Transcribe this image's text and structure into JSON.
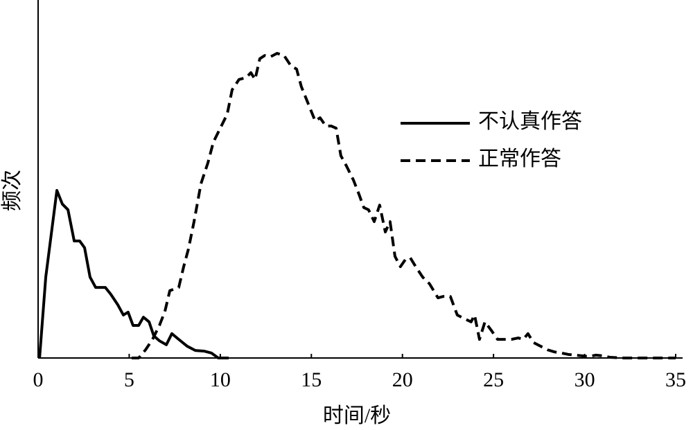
{
  "chart_data": {
    "type": "line",
    "xlabel": "时间/秒",
    "ylabel": "频次",
    "xlim": [
      0,
      35
    ],
    "xticks": [
      0,
      5,
      10,
      15,
      20,
      25,
      30,
      35
    ],
    "ylim": [
      0,
      100
    ],
    "legend": "upper right",
    "series": [
      {
        "name": "不认真作答",
        "color": "#000000",
        "dash": "solid",
        "x": [
          0.08,
          0.42,
          1.03,
          1.33,
          1.64,
          1.98,
          2.28,
          2.55,
          2.85,
          3.16,
          3.69,
          3.99,
          4.37,
          4.68,
          4.94,
          5.21,
          5.52,
          5.78,
          6.09,
          6.35,
          6.66,
          7.04,
          7.34,
          7.72,
          8.18,
          8.63,
          9.13,
          9.51,
          9.89,
          10.46
        ],
        "values": [
          0,
          22.6,
          46.8,
          43.0,
          41.4,
          32.7,
          32.7,
          30.8,
          22.6,
          19.7,
          19.7,
          17.8,
          14.9,
          12.0,
          12.8,
          9.1,
          9.1,
          11.4,
          10.1,
          6.2,
          4.8,
          3.7,
          6.8,
          5.2,
          3.3,
          2.1,
          1.9,
          1.4,
          0,
          0
        ]
      },
      {
        "name": "正常作答",
        "color": "#000000",
        "dash": "dashed",
        "x": [
          5.13,
          5.52,
          5.9,
          6.28,
          6.66,
          6.96,
          7.23,
          7.72,
          7.99,
          8.25,
          8.56,
          8.94,
          9.32,
          9.62,
          10.0,
          10.38,
          10.65,
          11.03,
          11.41,
          11.68,
          11.91,
          12.17,
          12.44,
          12.74,
          13.12,
          13.5,
          13.88,
          14.19,
          14.45,
          14.83,
          15.21,
          15.48,
          15.79,
          16.09,
          16.36,
          16.62,
          16.93,
          17.31,
          17.61,
          17.88,
          18.14,
          18.45,
          18.75,
          19.06,
          19.32,
          19.59,
          19.89,
          20.16,
          20.43,
          20.73,
          21.11,
          21.49,
          21.95,
          22.25,
          22.63,
          23.01,
          23.39,
          23.77,
          23.96,
          24.23,
          24.53,
          24.91,
          25.22,
          25.6,
          25.98,
          26.36,
          26.63,
          26.89,
          27.2,
          27.58,
          27.96,
          28.34,
          28.72,
          29.1,
          29.48,
          29.86,
          30.24,
          30.62,
          31.0,
          31.38,
          32.14,
          35
        ],
        "values": [
          0,
          0,
          2.3,
          5.2,
          9.1,
          13.0,
          18.8,
          19.7,
          25.5,
          30.4,
          38.1,
          48.7,
          54.5,
          60.3,
          64.2,
          68.1,
          74.9,
          77.8,
          78.3,
          79.7,
          77.8,
          83.6,
          84.5,
          84.1,
          85.1,
          84.5,
          81.6,
          80.7,
          75.8,
          71.0,
          66.2,
          67.1,
          64.8,
          64.8,
          64.2,
          56.5,
          53.6,
          49.7,
          45.8,
          42.0,
          41.4,
          38.1,
          42.7,
          35.2,
          38.1,
          28.4,
          25.5,
          27.5,
          28.0,
          25.5,
          22.6,
          20.7,
          16.8,
          17.2,
          17.2,
          12.0,
          11.0,
          10.1,
          12.0,
          5.2,
          10.1,
          7.5,
          5.2,
          5.2,
          5.2,
          5.6,
          5.2,
          6.8,
          4.3,
          3.3,
          2.3,
          1.7,
          1.4,
          1.0,
          0.8,
          0.6,
          0.4,
          0.8,
          0.6,
          0.2,
          0,
          0
        ]
      }
    ]
  }
}
